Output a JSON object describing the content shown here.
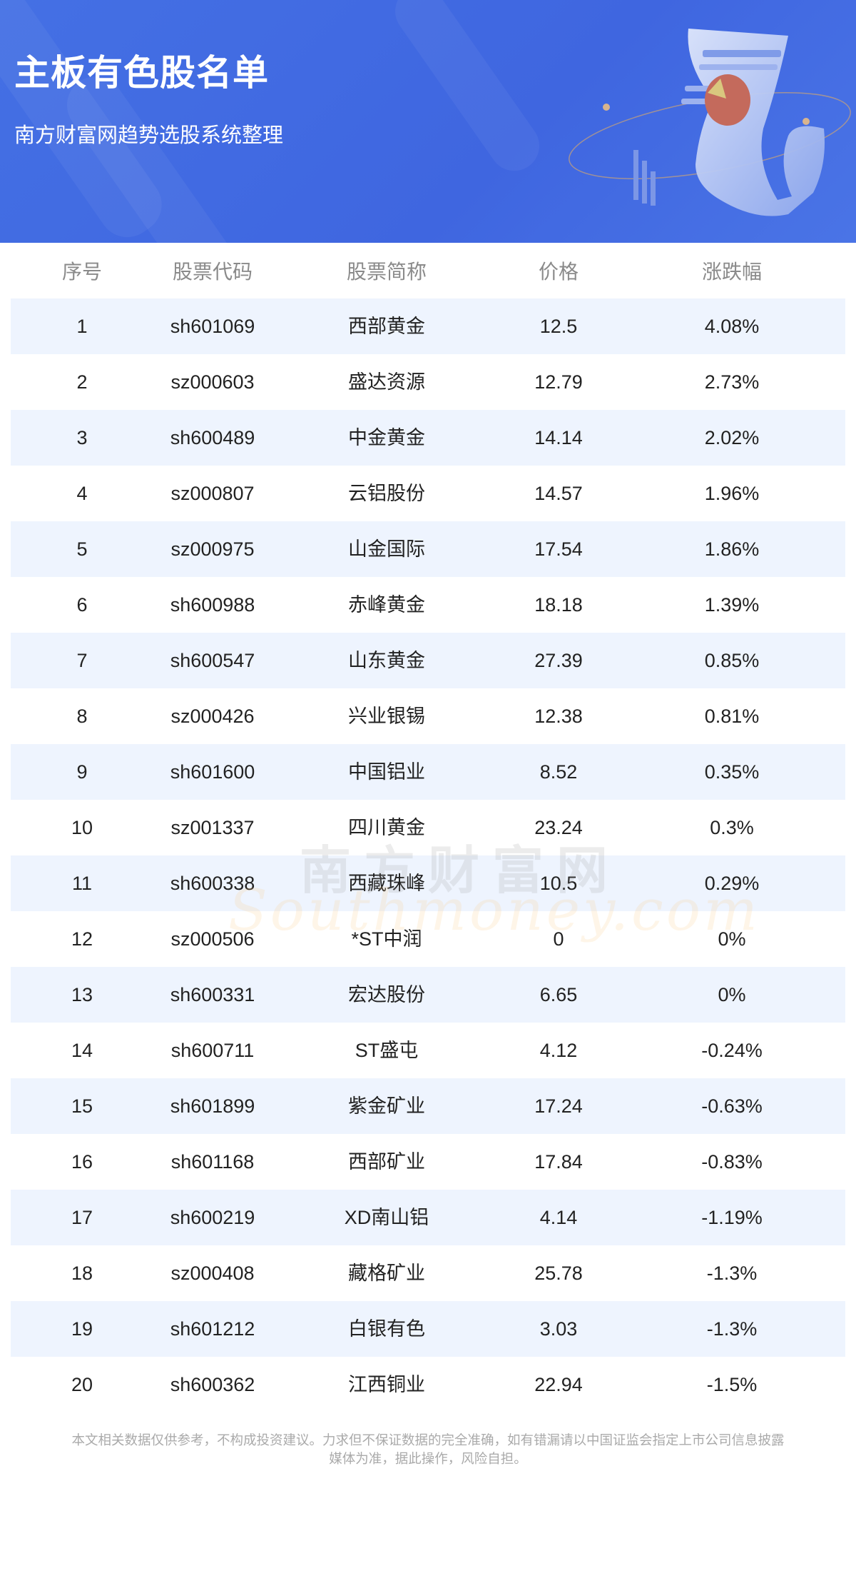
{
  "header": {
    "title": "主板有色股名单",
    "subtitle": "南方财富网趋势选股系统整理",
    "background_color": "#4169e1"
  },
  "table": {
    "columns": [
      "序号",
      "股票代码",
      "股票简称",
      "价格",
      "涨跌幅"
    ],
    "alt_row_color": "#eef4fe",
    "rows": [
      [
        "1",
        "sh601069",
        "西部黄金",
        "12.5",
        "4.08%"
      ],
      [
        "2",
        "sz000603",
        "盛达资源",
        "12.79",
        "2.73%"
      ],
      [
        "3",
        "sh600489",
        "中金黄金",
        "14.14",
        "2.02%"
      ],
      [
        "4",
        "sz000807",
        "云铝股份",
        "14.57",
        "1.96%"
      ],
      [
        "5",
        "sz000975",
        "山金国际",
        "17.54",
        "1.86%"
      ],
      [
        "6",
        "sh600988",
        "赤峰黄金",
        "18.18",
        "1.39%"
      ],
      [
        "7",
        "sh600547",
        "山东黄金",
        "27.39",
        "0.85%"
      ],
      [
        "8",
        "sz000426",
        "兴业银锡",
        "12.38",
        "0.81%"
      ],
      [
        "9",
        "sh601600",
        "中国铝业",
        "8.52",
        "0.35%"
      ],
      [
        "10",
        "sz001337",
        "四川黄金",
        "23.24",
        "0.3%"
      ],
      [
        "11",
        "sh600338",
        "西藏珠峰",
        "10.5",
        "0.29%"
      ],
      [
        "12",
        "sz000506",
        "*ST中润",
        "0",
        "0%"
      ],
      [
        "13",
        "sh600331",
        "宏达股份",
        "6.65",
        "0%"
      ],
      [
        "14",
        "sh600711",
        "ST盛屯",
        "4.12",
        "-0.24%"
      ],
      [
        "15",
        "sh601899",
        "紫金矿业",
        "17.24",
        "-0.63%"
      ],
      [
        "16",
        "sh601168",
        "西部矿业",
        "17.84",
        "-0.83%"
      ],
      [
        "17",
        "sh600219",
        "XD南山铝",
        "4.14",
        "-1.19%"
      ],
      [
        "18",
        "sz000408",
        "藏格矿业",
        "25.78",
        "-1.3%"
      ],
      [
        "19",
        "sh601212",
        "白银有色",
        "3.03",
        "-1.3%"
      ],
      [
        "20",
        "sh600362",
        "江西铜业",
        "22.94",
        "-1.5%"
      ]
    ]
  },
  "watermark": {
    "cn": "南方财富网",
    "en": "Southmoney.com"
  },
  "footer": {
    "line1": "本文相关数据仅供参考，不构成投资建议。力求但不保证数据的完全准确，如有错漏请以中国证监会指定上市公司信息披露",
    "line2": "媒体为准，据此操作，风险自担。"
  }
}
